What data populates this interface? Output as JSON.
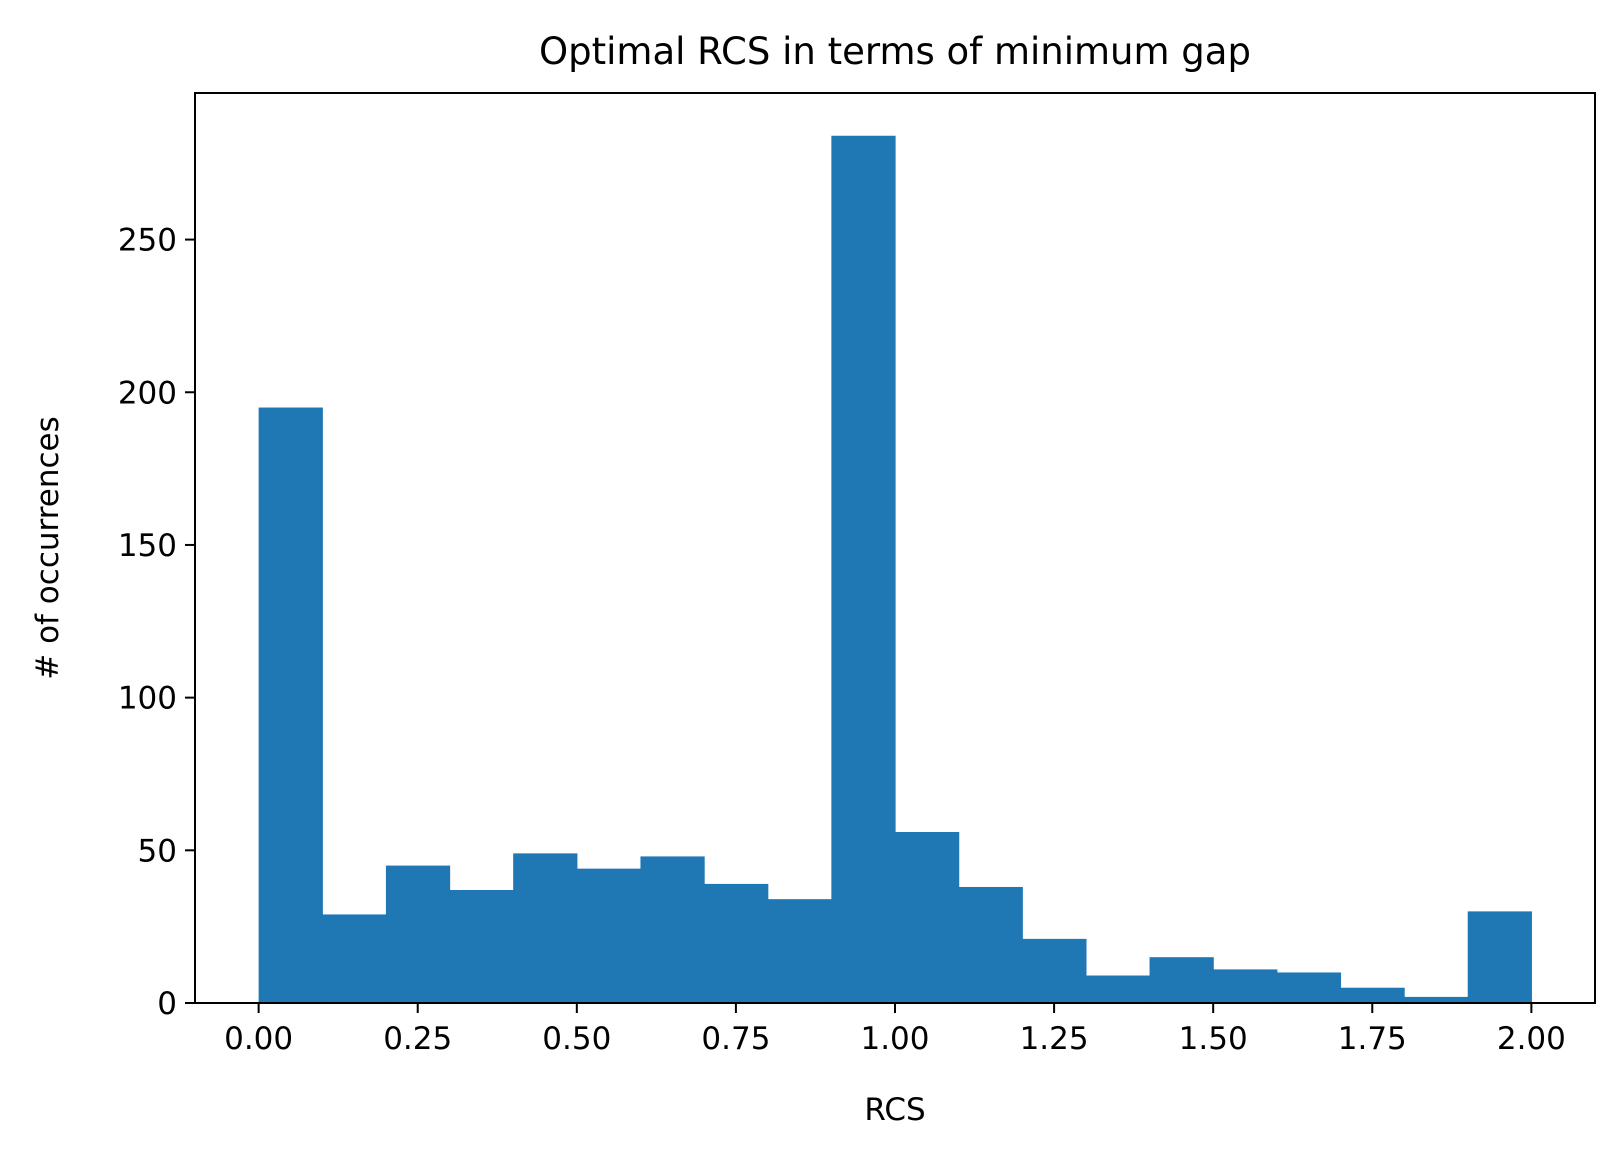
{
  "chart_data": {
    "type": "bar",
    "title": "Optimal RCS in terms of minimum gap",
    "xlabel": "RCS",
    "ylabel": "# of occurrences",
    "bin_edges": [
      0.0,
      0.1,
      0.2,
      0.3,
      0.4,
      0.5,
      0.6,
      0.7,
      0.8,
      0.9,
      1.0,
      1.1,
      1.2,
      1.3,
      1.4,
      1.5,
      1.6,
      1.7,
      1.8,
      1.9,
      2.0
    ],
    "values": [
      195,
      29,
      45,
      37,
      49,
      44,
      48,
      39,
      34,
      284,
      56,
      38,
      21,
      9,
      15,
      11,
      10,
      5,
      2,
      30
    ],
    "xlim": [
      -0.1,
      2.1
    ],
    "ylim": [
      0,
      298
    ],
    "xticks": [
      0.0,
      0.25,
      0.5,
      0.75,
      1.0,
      1.25,
      1.5,
      1.75,
      2.0
    ],
    "xtick_labels": [
      "0.00",
      "0.25",
      "0.50",
      "0.75",
      "1.00",
      "1.25",
      "1.50",
      "1.75",
      "2.00"
    ],
    "yticks": [
      0,
      50,
      100,
      150,
      200,
      250
    ],
    "ytick_labels": [
      "0",
      "50",
      "100",
      "150",
      "200",
      "250"
    ],
    "bar_color": "#1f77b4",
    "grid": false,
    "legend": "none"
  }
}
